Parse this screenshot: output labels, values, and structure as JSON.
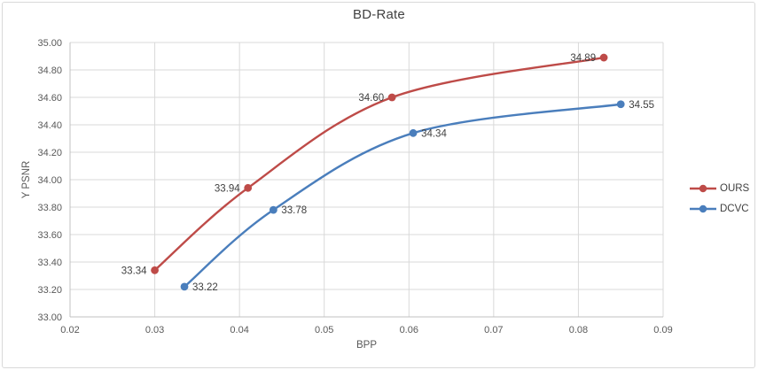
{
  "chart": {
    "background": "#ffffff",
    "border_color": "#d9d9d9",
    "title_color": "#404040",
    "tick_label_color": "#595959",
    "grid_color": "#d9d9d9",
    "axis_line_color": "#c0c0c0",
    "data_label_color": "#404040"
  },
  "chart_data": {
    "type": "line",
    "title": "BD-Rate",
    "xlabel": "BPP",
    "ylabel": "Y PSNR",
    "xlim": [
      0.02,
      0.09
    ],
    "ylim": [
      33.0,
      35.0
    ],
    "x_ticks": [
      "0.02",
      "0.03",
      "0.04",
      "0.05",
      "0.06",
      "0.07",
      "0.08",
      "0.09"
    ],
    "y_ticks": [
      "33.00",
      "33.20",
      "33.40",
      "33.60",
      "33.80",
      "34.00",
      "34.20",
      "34.40",
      "34.60",
      "34.80",
      "35.00"
    ],
    "grid": true,
    "smooth": true,
    "legend_position": "right",
    "series": [
      {
        "name": "OURS",
        "color": "#be4b48",
        "x": [
          0.03,
          0.041,
          0.058,
          0.083
        ],
        "y": [
          33.34,
          33.94,
          34.6,
          34.89
        ],
        "point_labels": [
          "33.34",
          "33.94",
          "34.60",
          "34.89"
        ],
        "label_side": "left"
      },
      {
        "name": "DCVC",
        "color": "#4a7ebc",
        "x": [
          0.0335,
          0.044,
          0.0605,
          0.085
        ],
        "y": [
          33.22,
          33.78,
          34.34,
          34.55
        ],
        "point_labels": [
          "33.22",
          "33.78",
          "34.34",
          "34.55"
        ],
        "label_side": "right"
      }
    ]
  }
}
